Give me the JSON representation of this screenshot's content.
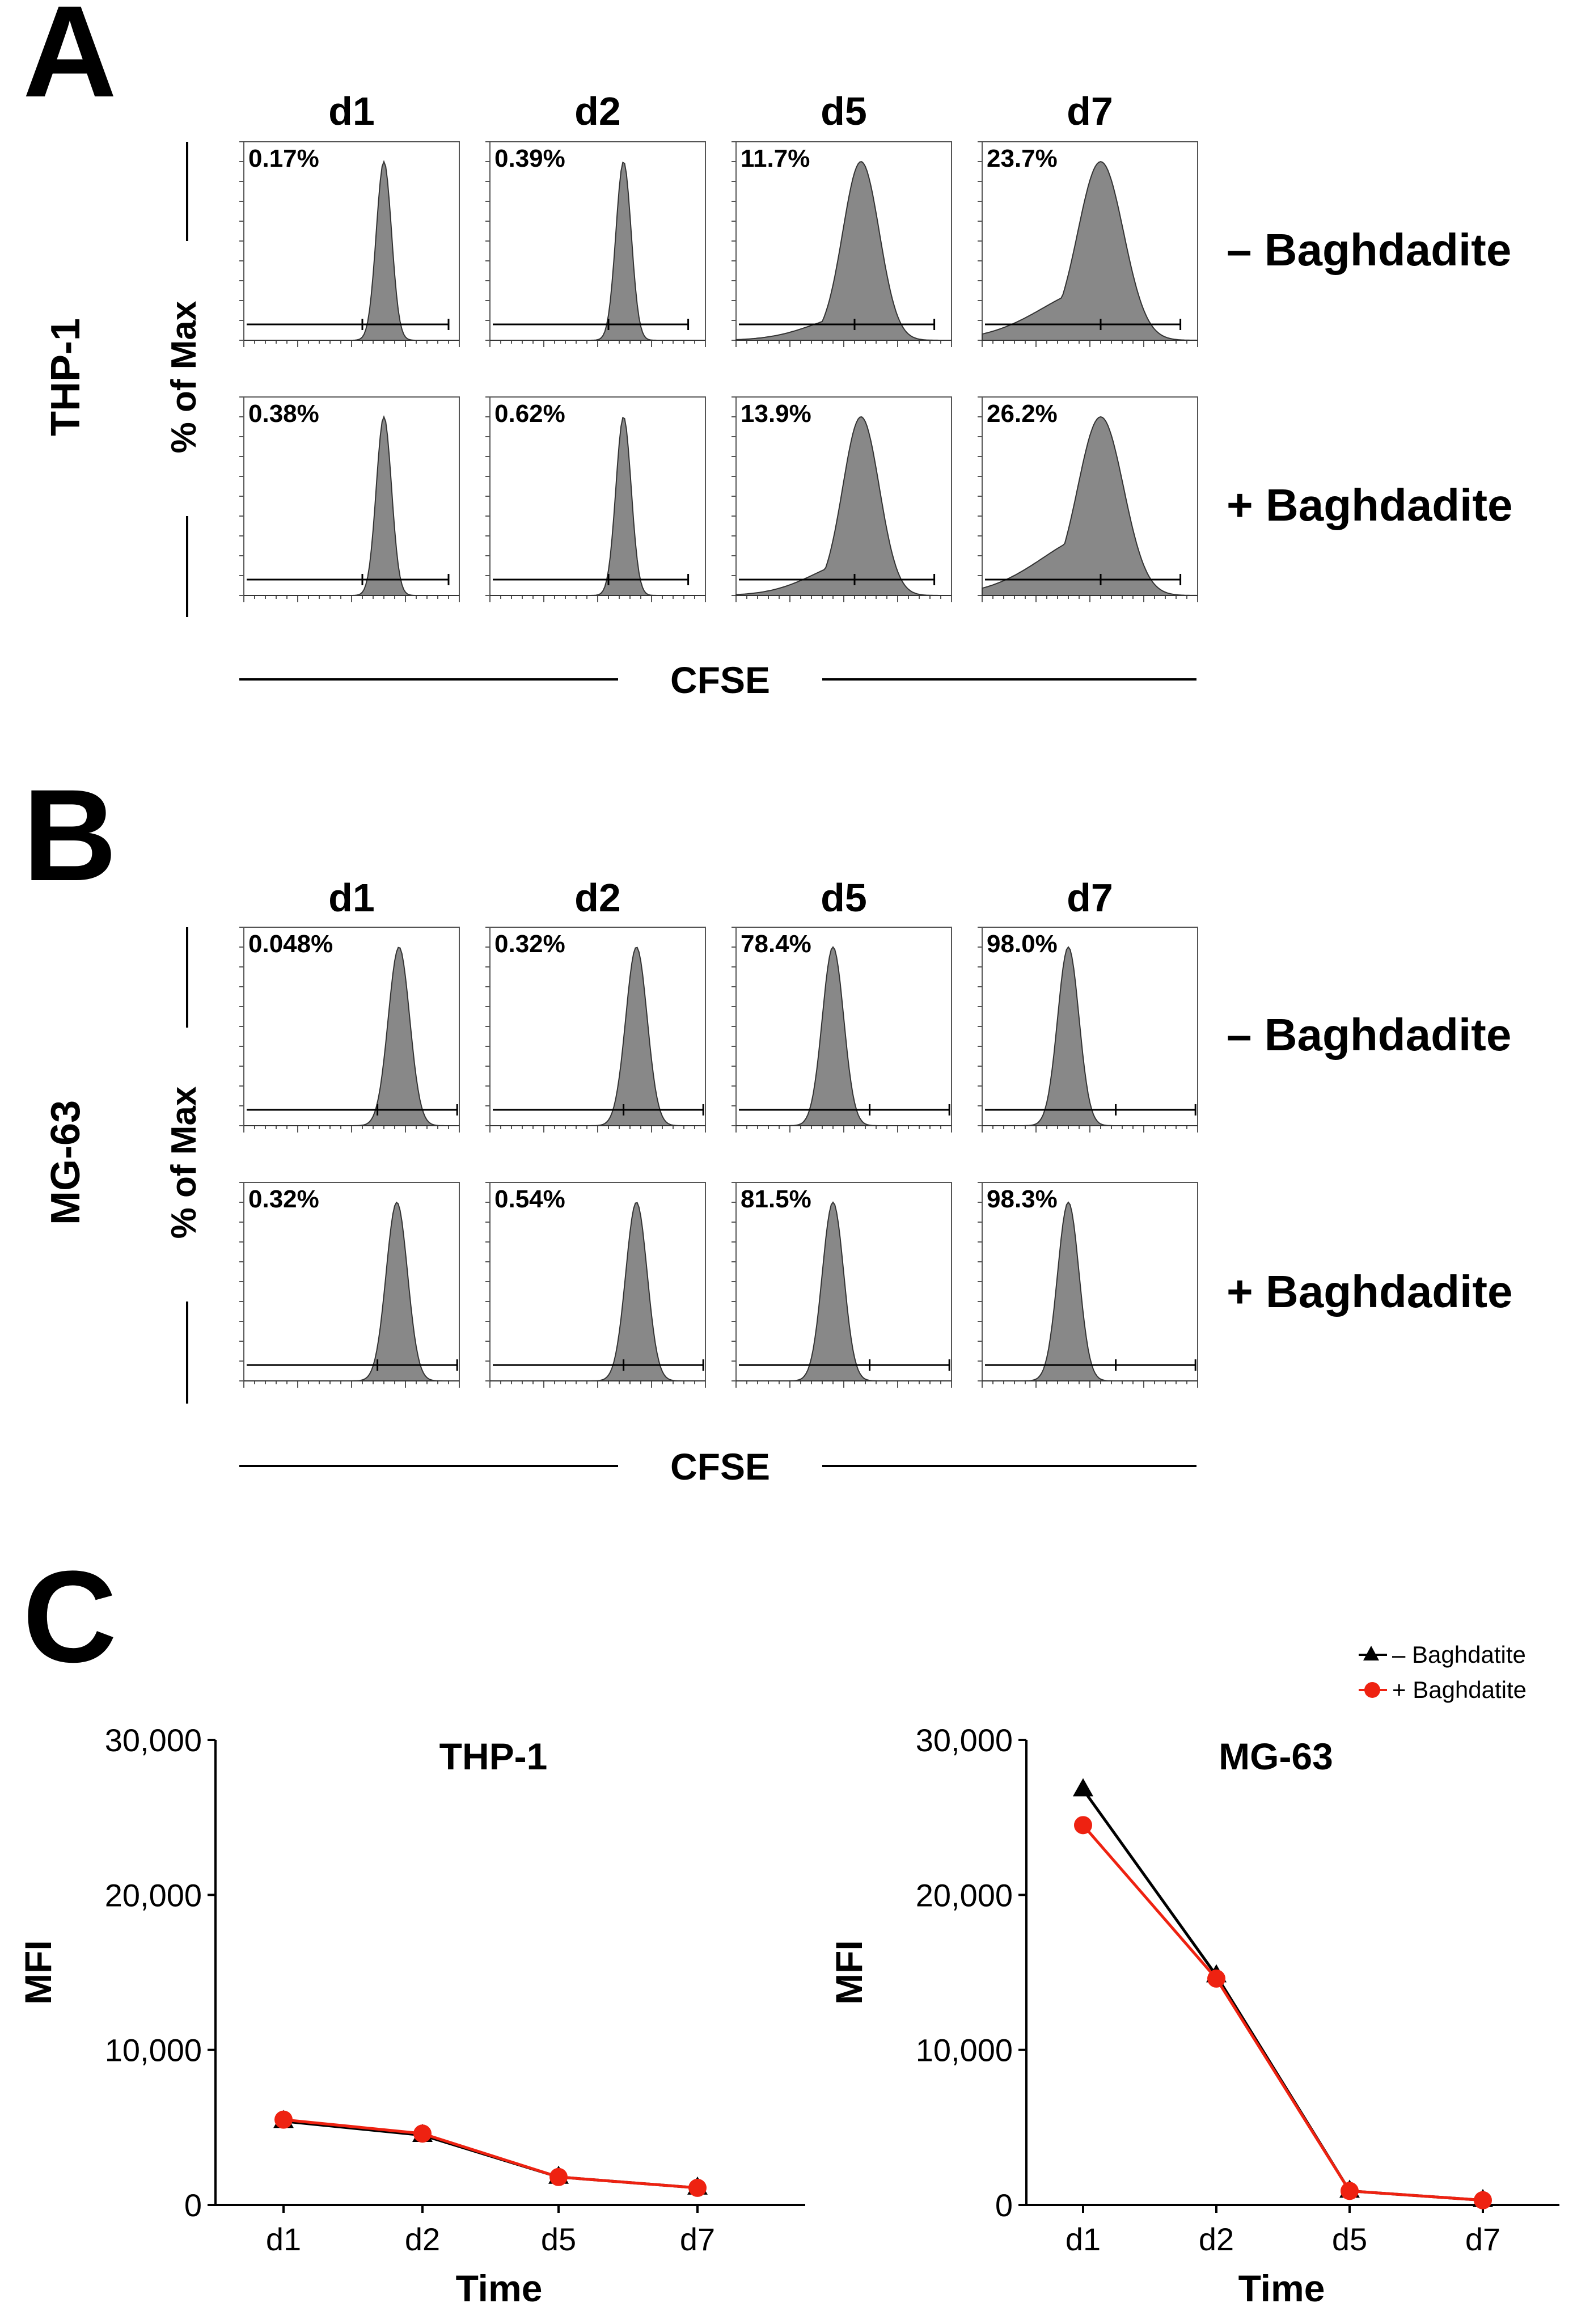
{
  "panels": {
    "A": {
      "letter": "A",
      "cell_line": "THP-1",
      "y_label": "% of Max",
      "x_label": "CFSE",
      "columns": [
        "d1",
        "d2",
        "d5",
        "d7"
      ],
      "rows": [
        {
          "label": "– Baghdadite",
          "percentages": [
            "0.17%",
            "0.39%",
            "11.7%",
            "23.7%"
          ]
        },
        {
          "label": "+ Baghdadite",
          "percentages": [
            "0.38%",
            "0.62%",
            "13.9%",
            "26.2%"
          ]
        }
      ]
    },
    "B": {
      "letter": "B",
      "cell_line": "MG-63",
      "y_label": "% of Max",
      "x_label": "CFSE",
      "columns": [
        "d1",
        "d2",
        "d5",
        "d7"
      ],
      "rows": [
        {
          "label": "– Baghdadite",
          "percentages": [
            "0.048%",
            "0.32%",
            "78.4%",
            "98.0%"
          ]
        },
        {
          "label": "+ Baghdadite",
          "percentages": [
            "0.32%",
            "0.54%",
            "81.5%",
            "98.3%"
          ]
        }
      ]
    },
    "C": {
      "letter": "C"
    }
  },
  "legend": {
    "items": [
      {
        "label": "– Baghdatite",
        "marker": "triangle",
        "color": "#000000"
      },
      {
        "label": "+ Baghdatite",
        "marker": "circle",
        "color": "#ee2211"
      }
    ]
  },
  "chart_data": [
    {
      "type": "line",
      "title": "THP-1",
      "xlabel": "Time",
      "ylabel": "MFI",
      "categories": [
        "d1",
        "d2",
        "d5",
        "d7"
      ],
      "ylim": [
        0,
        30000
      ],
      "yticks": [
        0,
        10000,
        20000,
        30000
      ],
      "ytick_labels": [
        "0",
        "10,000",
        "20,000",
        "30,000"
      ],
      "series": [
        {
          "name": "– Baghdatite",
          "marker": "triangle",
          "color": "#000000",
          "values": [
            5400,
            4500,
            1800,
            1100
          ]
        },
        {
          "name": "+ Baghdatite",
          "marker": "circle",
          "color": "#ee2211",
          "values": [
            5500,
            4600,
            1800,
            1100
          ]
        }
      ]
    },
    {
      "type": "line",
      "title": "MG-63",
      "xlabel": "Time",
      "ylabel": "MFI",
      "categories": [
        "d1",
        "d2",
        "d5",
        "d7"
      ],
      "ylim": [
        0,
        30000
      ],
      "yticks": [
        0,
        10000,
        20000,
        30000
      ],
      "ytick_labels": [
        "0",
        "10,000",
        "20,000",
        "30,000"
      ],
      "series": [
        {
          "name": "– Baghdatite",
          "marker": "triangle",
          "color": "#000000",
          "values": [
            26800,
            14800,
            900,
            300
          ]
        },
        {
          "name": "+ Baghdatite",
          "marker": "circle",
          "color": "#ee2211",
          "values": [
            24500,
            14600,
            900,
            300
          ]
        }
      ]
    }
  ]
}
